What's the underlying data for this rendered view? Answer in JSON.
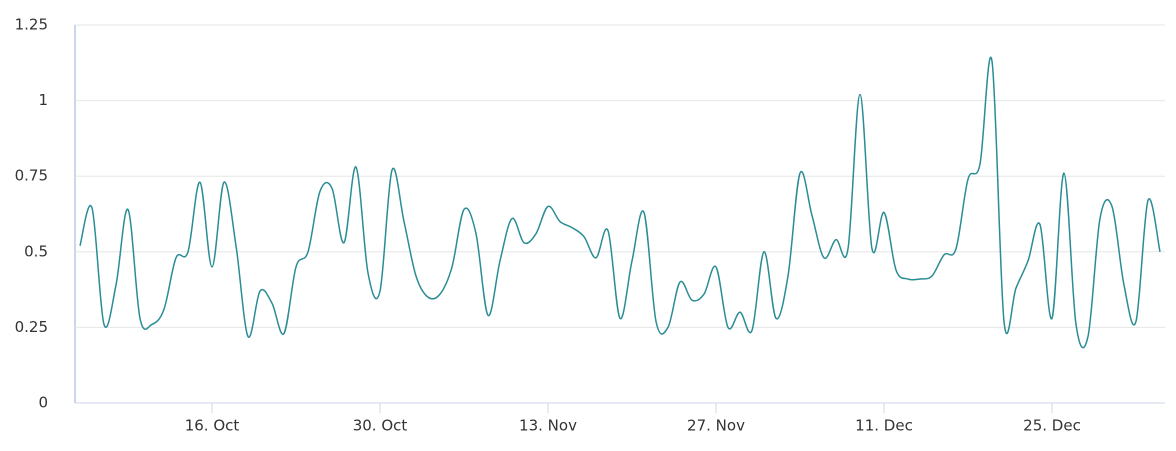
{
  "chart_data": {
    "type": "line",
    "categories": [
      null,
      null,
      null,
      null,
      null,
      null,
      null,
      null,
      null,
      null,
      null,
      "16. Oct",
      null,
      null,
      null,
      null,
      null,
      null,
      null,
      null,
      null,
      null,
      null,
      null,
      null,
      "30. Oct",
      null,
      null,
      null,
      null,
      null,
      null,
      null,
      null,
      null,
      null,
      null,
      null,
      null,
      "13. Nov",
      null,
      null,
      null,
      null,
      null,
      null,
      null,
      null,
      null,
      null,
      null,
      null,
      null,
      "27. Nov",
      null,
      null,
      null,
      null,
      null,
      null,
      null,
      null,
      null,
      null,
      null,
      null,
      null,
      "11. Dec",
      null,
      null,
      null,
      null,
      null,
      null,
      null,
      null,
      null,
      null,
      null,
      null,
      null,
      "25. Dec",
      null,
      null,
      null,
      null,
      null,
      null,
      null,
      null,
      null
    ],
    "series": [
      {
        "color": "#2a8c94",
        "values": [
          0.52,
          0.645,
          0.26,
          0.39,
          0.64,
          0.28,
          0.26,
          0.31,
          0.48,
          0.5,
          0.73,
          0.45,
          0.73,
          0.52,
          0.22,
          0.37,
          0.33,
          0.23,
          0.45,
          0.5,
          0.7,
          0.71,
          0.53,
          0.78,
          0.43,
          0.37,
          0.77,
          0.6,
          0.42,
          0.35,
          0.36,
          0.45,
          0.64,
          0.56,
          0.29,
          0.47,
          0.61,
          0.53,
          0.56,
          0.65,
          0.6,
          0.58,
          0.55,
          0.48,
          0.57,
          0.28,
          0.47,
          0.63,
          0.27,
          0.25,
          0.4,
          0.34,
          0.36,
          0.45,
          0.25,
          0.3,
          0.24,
          0.5,
          0.28,
          0.42,
          0.76,
          0.62,
          0.48,
          0.54,
          0.51,
          1.02,
          0.51,
          0.63,
          0.44,
          0.41,
          0.41,
          0.42,
          0.49,
          0.51,
          0.74,
          0.79,
          1.13,
          0.27,
          0.38,
          0.47,
          0.59,
          0.28,
          0.76,
          0.26,
          0.22,
          0.61,
          0.65,
          0.39,
          0.27,
          0.67,
          0.5
        ]
      }
    ],
    "ylim": [
      0,
      1.25
    ],
    "yticks": [
      0,
      0.25,
      0.5,
      0.75,
      1,
      1.25
    ],
    "grid": true
  }
}
